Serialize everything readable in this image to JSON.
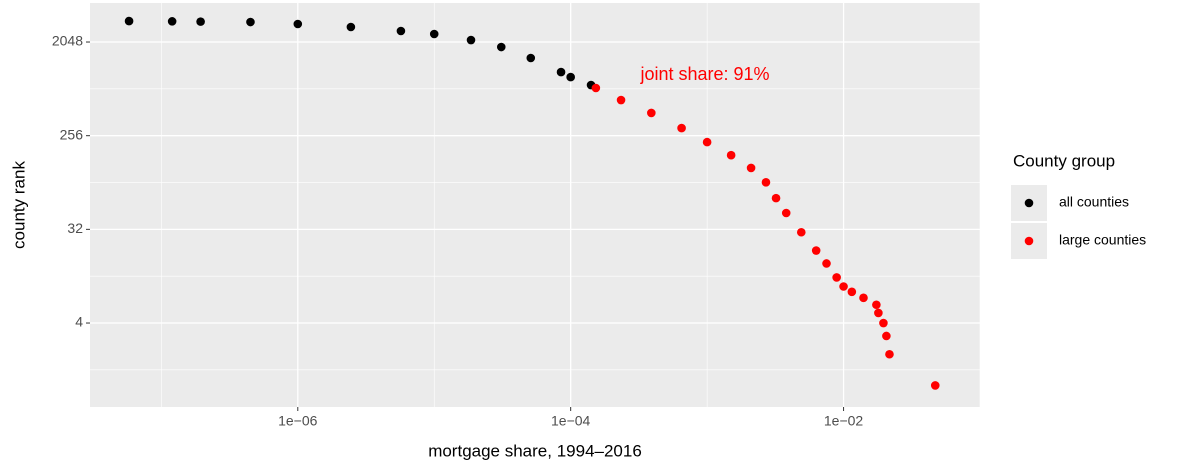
{
  "chart_data": {
    "type": "scatter",
    "x_label": "mortgage share, 1994–2016",
    "y_label": "county rank",
    "annotation": {
      "text": "joint share: 91%",
      "color": "#ff0000"
    },
    "legend_title": "County group",
    "legend_position": "right",
    "x_log": true,
    "y_log": true,
    "grid": true,
    "minor_grid": true,
    "xlim": [
      3e-08,
      0.1
    ],
    "ylim": [
      0.62,
      4870
    ],
    "xticks": [
      {
        "value": 1e-06,
        "label": "1e−06"
      },
      {
        "value": 0.0001,
        "label": "1e−04"
      },
      {
        "value": 0.01,
        "label": "1e−02"
      }
    ],
    "yticks": [
      4,
      32,
      256,
      2048
    ],
    "series": [
      {
        "name": "all counties",
        "color": "#000000",
        "x": [
          5.8e-08,
          1.2e-07,
          1.94e-07,
          4.5e-07,
          1e-06,
          2.45e-06,
          5.7e-06,
          1e-05,
          1.86e-05,
          3.1e-05,
          5.1e-05,
          8.5e-05,
          0.0001,
          0.000141
        ],
        "values": [
          3260,
          3240,
          3220,
          3193,
          3055,
          2858,
          2615,
          2447,
          2140,
          1833,
          1436,
          1051,
          940,
          788
        ]
      },
      {
        "name": "large counties",
        "color": "#ff0000",
        "x": [
          0.000153,
          0.000234,
          0.00039,
          0.00065,
          0.001,
          0.0015,
          0.0021,
          0.0027,
          0.0032,
          0.0038,
          0.0049,
          0.0063,
          0.0075,
          0.0089,
          0.01,
          0.0115,
          0.014,
          0.0174,
          0.018,
          0.0196,
          0.0206,
          0.0217,
          0.047
        ],
        "values": [
          738,
          565,
          424,
          303,
          222,
          166,
          125,
          91,
          64,
          46,
          30,
          20,
          15,
          11,
          9,
          8,
          7,
          6,
          5,
          4,
          3,
          2,
          1
        ]
      }
    ]
  }
}
